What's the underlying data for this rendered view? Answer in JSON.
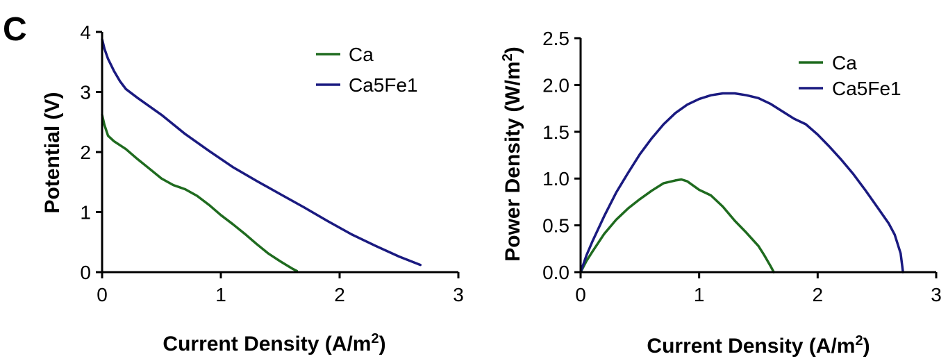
{
  "panel_label": "C",
  "chart_data": [
    {
      "type": "line",
      "name": "polarization",
      "xlabel": "Current Density (A/m",
      "xlabel_sup": "2",
      "xlabel_end": ")",
      "ylabel": "Potential (V)",
      "xlim": [
        0,
        3
      ],
      "ylim": [
        0,
        4
      ],
      "xticks": [
        0,
        1,
        2,
        3
      ],
      "yticks": [
        0,
        1,
        2,
        3,
        4
      ],
      "ytick_labels": [
        "0",
        "1",
        "2",
        "3",
        "4"
      ],
      "legend": {
        "position": "top-right",
        "entries": [
          "Ca",
          "Ca5Fe1"
        ]
      },
      "series": [
        {
          "name": "Ca",
          "color": "#1f6b1f",
          "x": [
            0,
            0.02,
            0.05,
            0.1,
            0.2,
            0.3,
            0.4,
            0.5,
            0.6,
            0.7,
            0.8,
            0.9,
            1.0,
            1.1,
            1.2,
            1.3,
            1.4,
            1.5,
            1.6,
            1.64
          ],
          "y": [
            2.62,
            2.45,
            2.27,
            2.18,
            2.05,
            1.88,
            1.72,
            1.56,
            1.45,
            1.38,
            1.27,
            1.12,
            0.95,
            0.8,
            0.64,
            0.47,
            0.31,
            0.18,
            0.06,
            0.02
          ]
        },
        {
          "name": "Ca5Fe1",
          "color": "#1a1a80",
          "x": [
            0,
            0.02,
            0.05,
            0.1,
            0.15,
            0.2,
            0.3,
            0.5,
            0.7,
            0.9,
            1.1,
            1.3,
            1.5,
            1.7,
            1.9,
            2.1,
            2.3,
            2.5,
            2.68
          ],
          "y": [
            3.88,
            3.72,
            3.55,
            3.35,
            3.18,
            3.05,
            2.9,
            2.62,
            2.3,
            2.02,
            1.75,
            1.52,
            1.3,
            1.08,
            0.85,
            0.63,
            0.44,
            0.26,
            0.12
          ]
        }
      ]
    },
    {
      "type": "line",
      "name": "power",
      "xlabel": "Current Density (A/m",
      "xlabel_sup": "2",
      "xlabel_end": ")",
      "ylabel": "Power Density (W/m",
      "ylabel_sup": "2",
      "ylabel_end": ")",
      "xlim": [
        0,
        3
      ],
      "ylim": [
        0,
        2.5
      ],
      "xticks": [
        0,
        1,
        2,
        3
      ],
      "yticks": [
        0,
        0.5,
        1.0,
        1.5,
        2.0,
        2.5
      ],
      "ytick_labels": [
        "0.0",
        "0.5",
        "1.0",
        "1.5",
        "2.0",
        "2.5"
      ],
      "legend": {
        "position": "top-right",
        "entries": [
          "Ca",
          "Ca5Fe1"
        ]
      },
      "series": [
        {
          "name": "Ca",
          "color": "#1f6b1f",
          "x": [
            0,
            0.05,
            0.1,
            0.2,
            0.3,
            0.4,
            0.5,
            0.6,
            0.7,
            0.8,
            0.85,
            0.9,
            1.0,
            1.1,
            1.2,
            1.3,
            1.4,
            1.5,
            1.55,
            1.6,
            1.63
          ],
          "y": [
            0,
            0.12,
            0.22,
            0.41,
            0.56,
            0.68,
            0.78,
            0.87,
            0.95,
            0.98,
            0.99,
            0.97,
            0.88,
            0.82,
            0.7,
            0.55,
            0.42,
            0.28,
            0.18,
            0.07,
            0
          ]
        },
        {
          "name": "Ca5Fe1",
          "color": "#1a1a80",
          "x": [
            0,
            0.05,
            0.1,
            0.2,
            0.3,
            0.4,
            0.5,
            0.6,
            0.7,
            0.8,
            0.9,
            1.0,
            1.1,
            1.2,
            1.3,
            1.4,
            1.5,
            1.6,
            1.7,
            1.8,
            1.9,
            2.0,
            2.1,
            2.2,
            2.3,
            2.4,
            2.5,
            2.6,
            2.65,
            2.7,
            2.72
          ],
          "y": [
            0,
            0.18,
            0.33,
            0.6,
            0.85,
            1.06,
            1.26,
            1.43,
            1.58,
            1.7,
            1.79,
            1.85,
            1.89,
            1.91,
            1.91,
            1.89,
            1.86,
            1.8,
            1.72,
            1.64,
            1.58,
            1.47,
            1.34,
            1.2,
            1.05,
            0.88,
            0.7,
            0.52,
            0.4,
            0.2,
            0
          ]
        }
      ]
    }
  ]
}
